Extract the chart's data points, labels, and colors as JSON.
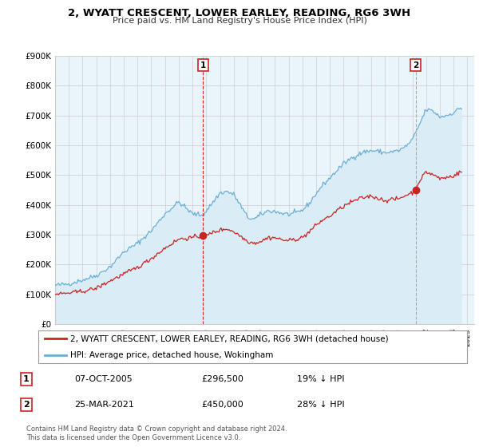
{
  "title": "2, WYATT CRESCENT, LOWER EARLEY, READING, RG6 3WH",
  "subtitle": "Price paid vs. HM Land Registry's House Price Index (HPI)",
  "ylim": [
    0,
    900000
  ],
  "yticks": [
    0,
    100000,
    200000,
    300000,
    400000,
    500000,
    600000,
    700000,
    800000,
    900000
  ],
  "ytick_labels": [
    "£0",
    "£100K",
    "£200K",
    "£300K",
    "£400K",
    "£500K",
    "£600K",
    "£700K",
    "£800K",
    "£900K"
  ],
  "xlim_start": 1995.0,
  "xlim_end": 2025.5,
  "hpi_color": "#6aaed6",
  "hpi_fill_color": "#daedf7",
  "price_color": "#cc2222",
  "vline1_color": "#cc2222",
  "vline2_color": "#aaaaaa",
  "marker_fill": "#cc2222",
  "chart_bg": "#eaf4fb",
  "background_color": "#ffffff",
  "legend_label_red": "2, WYATT CRESCENT, LOWER EARLEY, READING, RG6 3WH (detached house)",
  "legend_label_blue": "HPI: Average price, detached house, Wokingham",
  "sale1_date": "07-OCT-2005",
  "sale1_price": "£296,500",
  "sale1_hpi": "19% ↓ HPI",
  "sale1_x": 2005.77,
  "sale1_y": 296500,
  "sale2_date": "25-MAR-2021",
  "sale2_price": "£450,000",
  "sale2_hpi": "28% ↓ HPI",
  "sale2_x": 2021.23,
  "sale2_y": 450000,
  "footer": "Contains HM Land Registry data © Crown copyright and database right 2024.\nThis data is licensed under the Open Government Licence v3.0."
}
